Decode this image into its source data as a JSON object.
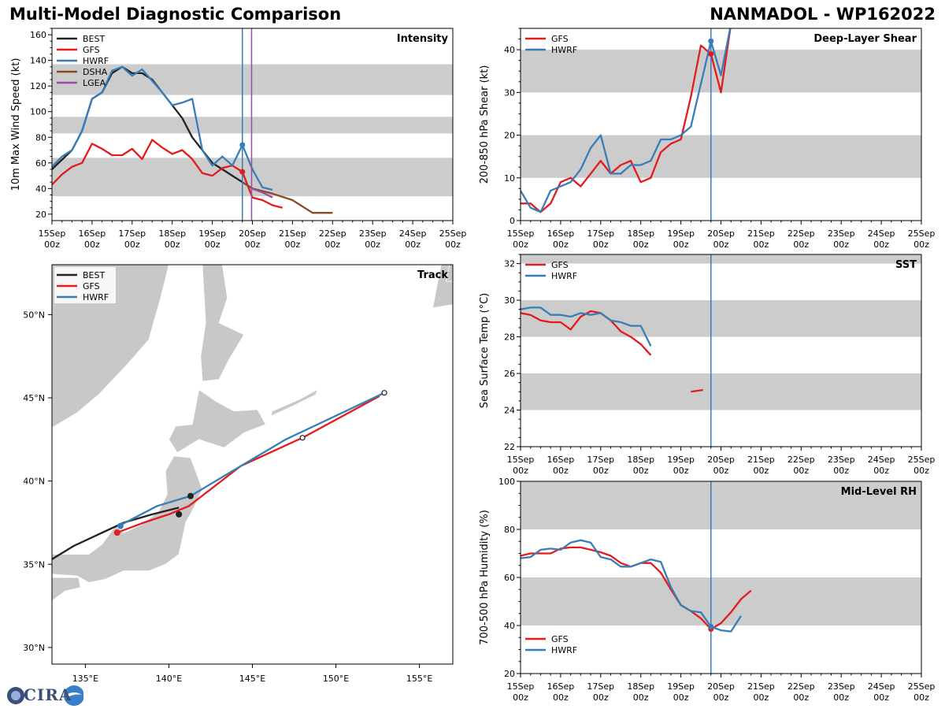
{
  "header": {
    "title": "Multi-Model Diagnostic Comparison",
    "storm": "NANMADOL - WP162022"
  },
  "logo": {
    "text": "CIRA"
  },
  "colors": {
    "BEST": "#222222",
    "GFS": "#e41a1c",
    "HWRF": "#377eb8",
    "DSHA": "#8c4a22",
    "LGEA": "#984ea3",
    "band": "#cccccc",
    "land": "#c8c8c8",
    "current": "#377eb8",
    "lgea_line": "#984ea3"
  },
  "time_axis": {
    "ticks": [
      "15Sep\n00z",
      "16Sep\n00z",
      "17Sep\n00z",
      "18Sep\n00z",
      "19Sep\n00z",
      "20Sep\n00z",
      "21Sep\n00z",
      "22Sep\n00z",
      "23Sep\n00z",
      "24Sep\n00z",
      "25Sep\n00z"
    ],
    "current_day": 4.75
  },
  "chart_data": [
    {
      "id": "intensity",
      "type": "line",
      "title": "Intensity",
      "xlabel": "",
      "ylabel": "10m Max Wind Speed (kt)",
      "xlim": [
        0,
        10
      ],
      "ylim": [
        15,
        165
      ],
      "yticks": [
        20,
        40,
        60,
        80,
        100,
        120,
        140,
        160
      ],
      "bands": [
        [
          34,
          64
        ],
        [
          83,
          96
        ],
        [
          113,
          137
        ]
      ],
      "vlines": [
        {
          "x": 4.75,
          "color": "current"
        },
        {
          "x": 4.98,
          "color": "lgea_line"
        }
      ],
      "legend": [
        "BEST",
        "GFS",
        "HWRF",
        "DSHA",
        "LGEA"
      ],
      "legend_position": "top-left",
      "series": [
        {
          "name": "BEST",
          "x": [
            0,
            0.5,
            0.75,
            1,
            1.25,
            1.5,
            1.75,
            2,
            2.25,
            2.5,
            2.75,
            3,
            3.25,
            3.5,
            3.75,
            4,
            4.25,
            4.5,
            4.75,
            5
          ],
          "y": [
            55,
            70,
            85,
            110,
            115,
            130,
            135,
            130,
            130,
            125,
            115,
            105,
            95,
            80,
            70,
            60,
            55,
            50,
            45,
            40
          ]
        },
        {
          "name": "GFS",
          "x": [
            0,
            0.25,
            0.5,
            0.75,
            1,
            1.25,
            1.5,
            1.75,
            2,
            2.25,
            2.5,
            2.75,
            3,
            3.25,
            3.5,
            3.75,
            4,
            4.25,
            4.5,
            4.75,
            5,
            5.25,
            5.5,
            5.75
          ],
          "y": [
            43,
            51,
            57,
            60,
            75,
            71,
            66,
            66,
            71,
            63,
            78,
            72,
            67,
            70,
            63,
            52,
            50,
            56,
            58,
            53,
            33,
            31,
            27,
            25
          ]
        },
        {
          "name": "HWRF",
          "x": [
            0,
            0.25,
            0.5,
            0.75,
            1,
            1.25,
            1.5,
            1.75,
            2,
            2.25,
            2.5,
            2.75,
            3,
            3.25,
            3.5,
            3.75,
            4,
            4.25,
            4.5,
            4.75,
            5,
            5.25,
            5.5
          ],
          "y": [
            57,
            65,
            70,
            85,
            110,
            115,
            132,
            135,
            128,
            133,
            124,
            115,
            105,
            107,
            110,
            70,
            58,
            65,
            58,
            74,
            55,
            41,
            39
          ]
        },
        {
          "name": "DSHA",
          "x": [
            4.75,
            5,
            5.5,
            6,
            6.5,
            7
          ],
          "y": [
            45,
            40,
            36,
            31,
            21,
            21
          ]
        },
        {
          "name": "LGEA",
          "x": [
            4.98,
            5.25,
            5.5
          ],
          "y": [
            40,
            37,
            33
          ]
        }
      ],
      "markers": [
        {
          "series": "GFS",
          "x": 4.75,
          "y": 53
        },
        {
          "series": "HWRF",
          "x": 4.75,
          "y": 74
        }
      ]
    },
    {
      "id": "shear",
      "type": "line",
      "title": "Deep-Layer Shear",
      "xlabel": "",
      "ylabel": "200-850 hPa Shear (kt)",
      "xlim": [
        0,
        10
      ],
      "ylim": [
        0,
        45
      ],
      "yticks": [
        0,
        10,
        20,
        30,
        40
      ],
      "bands": [
        [
          10,
          20
        ],
        [
          30,
          40
        ]
      ],
      "vlines": [
        {
          "x": 4.75,
          "color": "current"
        }
      ],
      "legend": [
        "GFS",
        "HWRF"
      ],
      "legend_position": "top-left",
      "series": [
        {
          "name": "GFS",
          "x": [
            0,
            0.25,
            0.5,
            0.75,
            1,
            1.25,
            1.5,
            1.75,
            2,
            2.25,
            2.5,
            2.75,
            3,
            3.25,
            3.5,
            3.75,
            4,
            4.25,
            4.5,
            4.75,
            5,
            5.25
          ],
          "y": [
            4,
            4,
            2,
            4,
            9,
            10,
            8,
            11,
            14,
            11,
            13,
            14,
            9,
            10,
            16,
            18,
            19,
            29,
            41,
            39,
            30,
            46
          ]
        },
        {
          "name": "HWRF",
          "x": [
            0,
            0.25,
            0.5,
            0.75,
            1,
            1.25,
            1.5,
            1.75,
            2,
            2.25,
            2.5,
            2.75,
            3,
            3.25,
            3.5,
            3.75,
            4,
            4.25,
            4.5,
            4.75,
            5,
            5.25
          ],
          "y": [
            7,
            3,
            2,
            7,
            8,
            9,
            12,
            17,
            20,
            11,
            11,
            13,
            13,
            14,
            19,
            19,
            20,
            22,
            32,
            42,
            34,
            46
          ]
        }
      ],
      "markers": [
        {
          "series": "GFS",
          "x": 4.75,
          "y": 39
        },
        {
          "series": "HWRF",
          "x": 4.75,
          "y": 42
        }
      ]
    },
    {
      "id": "sst",
      "type": "line",
      "title": "SST",
      "xlabel": "",
      "ylabel": "Sea Surface Temp (°C)",
      "xlim": [
        0,
        10
      ],
      "ylim": [
        22,
        32.5
      ],
      "yticks": [
        22,
        24,
        26,
        28,
        30,
        32
      ],
      "bands": [
        [
          24,
          26
        ],
        [
          28,
          30
        ],
        [
          32,
          34
        ]
      ],
      "vlines": [
        {
          "x": 4.75,
          "color": "current"
        }
      ],
      "legend": [
        "GFS",
        "HWRF"
      ],
      "legend_position": "top-left",
      "series": [
        {
          "name": "GFS",
          "segments": [
            {
              "x": [
                0,
                0.25,
                0.5,
                0.75,
                1,
                1.25,
                1.5,
                1.75,
                2,
                2.25,
                2.5,
                2.75,
                3,
                3.25
              ],
              "y": [
                29.3,
                29.2,
                28.9,
                28.8,
                28.8,
                28.4,
                29.1,
                29.4,
                29.3,
                28.9,
                28.3,
                28.0,
                27.6,
                27.0
              ]
            },
            {
              "x": [
                4.25,
                4.55
              ],
              "y": [
                25.0,
                25.1
              ]
            }
          ]
        },
        {
          "name": "HWRF",
          "segments": [
            {
              "x": [
                0,
                0.25,
                0.5,
                0.75,
                1,
                1.25,
                1.5,
                1.75,
                2,
                2.25,
                2.5,
                2.75,
                3,
                3.25
              ],
              "y": [
                29.5,
                29.6,
                29.6,
                29.2,
                29.2,
                29.1,
                29.3,
                29.2,
                29.3,
                28.9,
                28.8,
                28.6,
                28.6,
                27.5
              ]
            }
          ]
        }
      ],
      "markers": []
    },
    {
      "id": "rh",
      "type": "line",
      "title": "Mid-Level RH",
      "xlabel": "",
      "ylabel": "700-500 hPa Humidity (%)",
      "xlim": [
        0,
        10
      ],
      "ylim": [
        20,
        100
      ],
      "yticks": [
        20,
        40,
        60,
        80,
        100
      ],
      "bands": [
        [
          40,
          60
        ],
        [
          80,
          100
        ]
      ],
      "vlines": [
        {
          "x": 4.75,
          "color": "current"
        }
      ],
      "legend": [
        "GFS",
        "HWRF"
      ],
      "legend_position": "bottom-left",
      "series": [
        {
          "name": "GFS",
          "x": [
            0,
            0.25,
            0.5,
            0.75,
            1,
            1.25,
            1.5,
            1.75,
            2,
            2.25,
            2.5,
            2.75,
            3,
            3.25,
            3.5,
            3.75,
            4,
            4.25,
            4.5,
            4.75,
            5,
            5.25,
            5.5,
            5.75
          ],
          "y": [
            69,
            70,
            70,
            70,
            72,
            72.5,
            72.5,
            71.5,
            70.5,
            69,
            66,
            64.5,
            66,
            66,
            62,
            55,
            48.5,
            46,
            43,
            38.5,
            41,
            45.5,
            51,
            54.5
          ]
        },
        {
          "name": "HWRF",
          "x": [
            0,
            0.25,
            0.5,
            0.75,
            1,
            1.25,
            1.5,
            1.75,
            2,
            2.25,
            2.5,
            2.75,
            3,
            3.25,
            3.5,
            3.75,
            4,
            4.25,
            4.5,
            4.75,
            5,
            5.25,
            5.5
          ],
          "y": [
            68,
            68.5,
            71.5,
            72,
            71.5,
            74.5,
            75.5,
            74.5,
            68.5,
            67.5,
            64.5,
            64.5,
            66,
            67.5,
            66.5,
            56,
            48.5,
            46,
            45.5,
            39.5,
            38,
            37.5,
            44
          ]
        }
      ],
      "markers": [
        {
          "series": "GFS",
          "x": 4.75,
          "y": 38.5
        },
        {
          "series": "HWRF",
          "x": 4.75,
          "y": 39.5
        }
      ]
    },
    {
      "id": "track",
      "type": "scatter",
      "title": "Track",
      "xlabel": "",
      "ylabel": "",
      "xlim": [
        133,
        157
      ],
      "ylim": [
        29,
        53
      ],
      "xticks": [
        135,
        140,
        145,
        150,
        155
      ],
      "xtick_labels": [
        "135°E",
        "140°E",
        "145°E",
        "150°E",
        "155°E"
      ],
      "yticks": [
        30,
        35,
        40,
        45,
        50
      ],
      "ytick_labels": [
        "30°N",
        "35°N",
        "40°N",
        "45°N",
        "50°N"
      ],
      "legend": [
        "BEST",
        "GFS",
        "HWRF"
      ],
      "legend_position": "top-left",
      "series": [
        {
          "name": "BEST",
          "lon": [
            133.0,
            134.3,
            135.8,
            137.3,
            139.0,
            140.6
          ],
          "lat": [
            35.3,
            36.1,
            36.8,
            37.5,
            38.0,
            38.4
          ]
        },
        {
          "name": "GFS",
          "lon": [
            136.9,
            138.5,
            140.0,
            141.2,
            144.3,
            148.0,
            152.6
          ],
          "lat": [
            36.9,
            37.5,
            38.0,
            38.5,
            40.9,
            42.6,
            45.1
          ]
        },
        {
          "name": "HWRF",
          "lon": [
            137.0,
            139.3,
            141.3,
            144.3,
            147.0,
            152.9
          ],
          "lat": [
            37.3,
            38.5,
            39.1,
            40.9,
            42.5,
            45.3
          ]
        }
      ],
      "markers": [
        {
          "series": "BEST",
          "lon": 140.6,
          "lat": 38.0,
          "style": "filled"
        },
        {
          "series": "BEST",
          "lon": 141.3,
          "lat": 39.1,
          "style": "filled"
        },
        {
          "series": "GFS",
          "lon": 136.9,
          "lat": 36.9,
          "style": "filled"
        },
        {
          "series": "HWRF",
          "lon": 137.1,
          "lat": 37.3,
          "style": "filled"
        },
        {
          "series": "GFS",
          "lon": 148.0,
          "lat": 42.6,
          "style": "open"
        },
        {
          "series": "HWRF",
          "lon": 152.9,
          "lat": 45.3,
          "style": "open"
        }
      ]
    }
  ]
}
